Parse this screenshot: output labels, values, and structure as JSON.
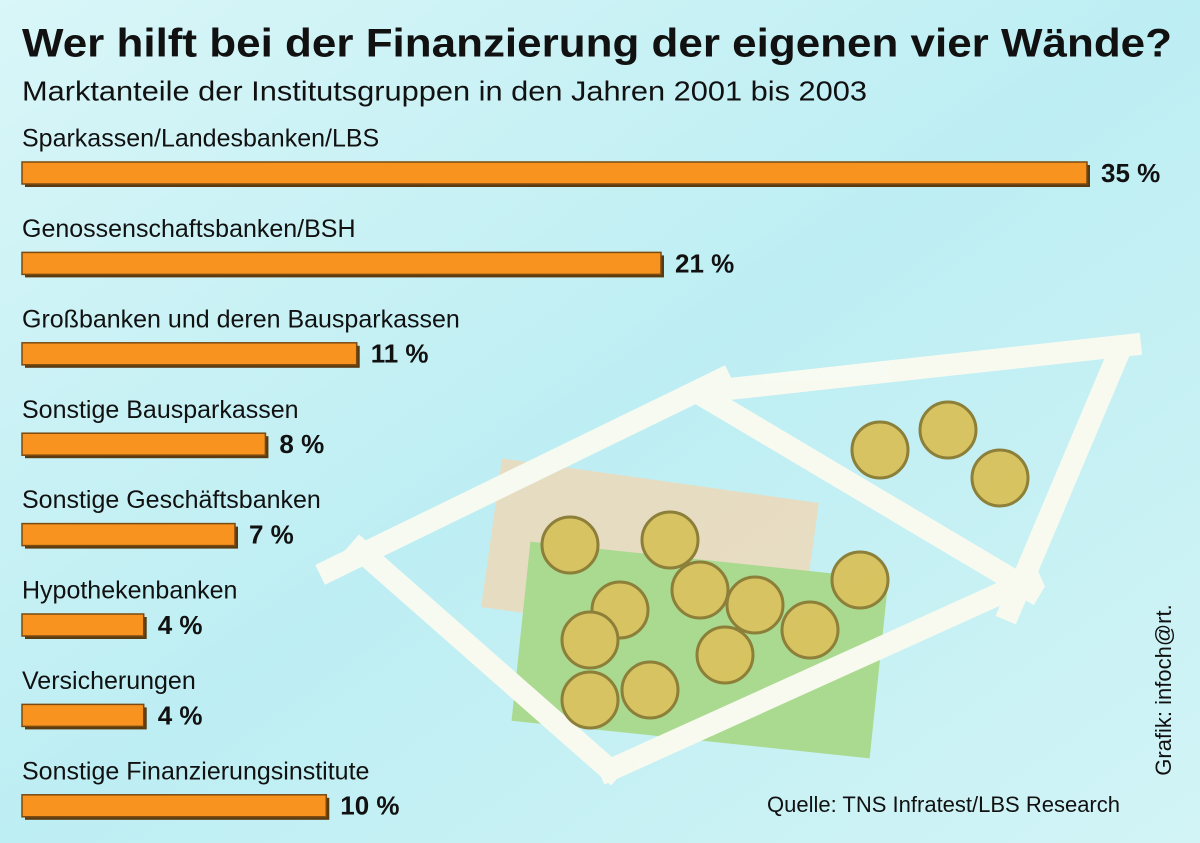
{
  "chart_data": {
    "type": "bar",
    "horizontal": true,
    "title": "Wer hilft bei der Finanzierung der eigenen vier Wände?",
    "subtitle": "Marktanteile der Institutsgruppen in den Jahren 2001 bis 2003",
    "categories": [
      "Sparkassen/Landesbanken/LBS",
      "Genossenschaftsbanken/BSH",
      "Großbanken und deren Bausparkassen",
      "Sonstige Bausparkassen",
      "Sonstige Geschäftsbanken",
      "Hypothekenbanken",
      "Versicherungen",
      "Sonstige Finanzierungsinstitute"
    ],
    "values": [
      35,
      21,
      11,
      8,
      7,
      4,
      4,
      10
    ],
    "value_labels": [
      "35 %",
      "21 %",
      "11 %",
      "8 %",
      "7 %",
      "4 %",
      "4 %",
      "10 %"
    ],
    "color": "#f7931e",
    "source": "Quelle: TNS Infratest/LBS Research",
    "credit": "Grafik: infoch@rt."
  }
}
